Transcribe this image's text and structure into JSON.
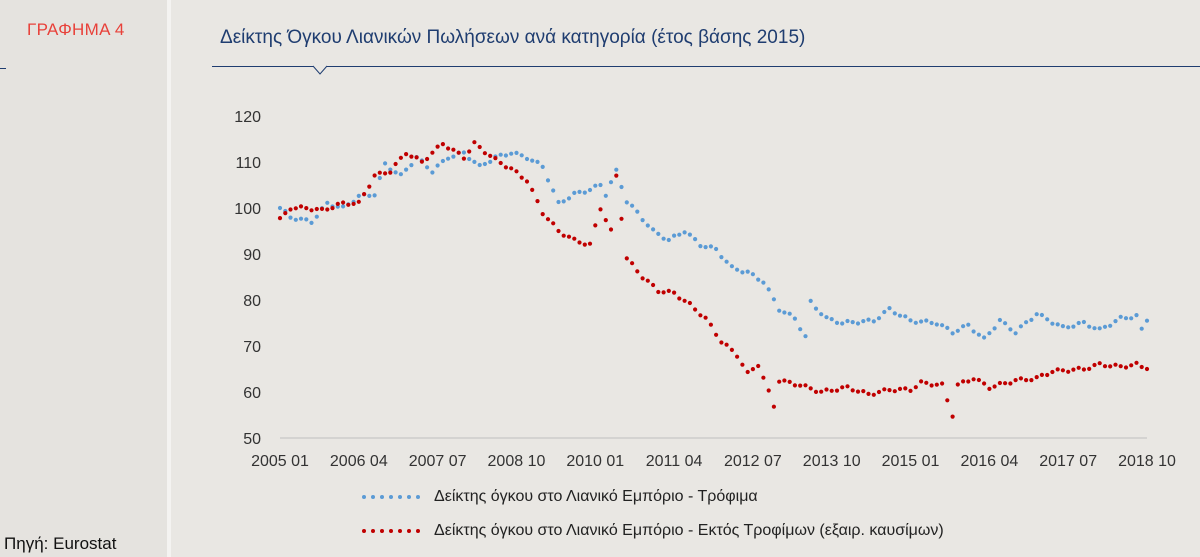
{
  "left": {
    "graph_label": "ΓΡΑΦΗΜΑ 4",
    "source": "Πηγή: Eurostat"
  },
  "colors": {
    "food": "#5b9bd5",
    "nonfood": "#c00000",
    "title": "#1f3d70",
    "graph_label": "#e8413a"
  },
  "chart_data": {
    "type": "scatter",
    "title": "Δείκτης Όγκου Λιανικών Πωλήσεων ανά κατηγορία (έτος βάσης 2015)",
    "xlabel": "",
    "ylabel": "",
    "ylim": [
      50,
      120
    ],
    "yticks": [
      50,
      60,
      70,
      80,
      90,
      100,
      110,
      120
    ],
    "xlim": [
      "2005-01",
      "2018-10"
    ],
    "xticks": [
      "2005 01",
      "2006 04",
      "2007 07",
      "2008 10",
      "2010 01",
      "2011 04",
      "2012 07",
      "2013 10",
      "2015 01",
      "2016 04",
      "2017 07",
      "2018 10"
    ],
    "grid": false,
    "legend_position": "bottom",
    "series": [
      {
        "name": "Δείκτης όγκου στο Λιανικό Εμπόριο - Τρόφιμα",
        "color": "#5b9bd5",
        "anchors": [
          [
            "2005-01",
            100
          ],
          [
            "2005-03",
            98
          ],
          [
            "2005-07",
            97
          ],
          [
            "2005-10",
            101
          ],
          [
            "2006-01",
            100
          ],
          [
            "2006-04",
            102.5
          ],
          [
            "2006-07",
            103
          ],
          [
            "2006-09",
            109.5
          ],
          [
            "2006-12",
            107
          ],
          [
            "2007-03",
            111
          ],
          [
            "2007-06",
            108
          ],
          [
            "2007-09",
            111
          ],
          [
            "2007-12",
            112
          ],
          [
            "2008-03",
            109
          ],
          [
            "2008-06",
            111
          ],
          [
            "2008-09",
            112
          ],
          [
            "2008-12",
            111
          ],
          [
            "2009-03",
            109
          ],
          [
            "2009-06",
            101
          ],
          [
            "2009-09",
            103
          ],
          [
            "2009-12",
            104
          ],
          [
            "2010-02",
            105
          ],
          [
            "2010-03",
            103
          ],
          [
            "2010-05",
            108
          ],
          [
            "2010-07",
            101.5
          ],
          [
            "2010-09",
            99
          ],
          [
            "2010-12",
            95
          ],
          [
            "2011-03",
            93
          ],
          [
            "2011-06",
            95
          ],
          [
            "2011-09",
            92
          ],
          [
            "2011-12",
            91
          ],
          [
            "2012-03",
            87
          ],
          [
            "2012-06",
            86
          ],
          [
            "2012-09",
            84
          ],
          [
            "2012-12",
            78
          ],
          [
            "2013-03",
            76
          ],
          [
            "2013-05",
            72
          ],
          [
            "2013-06",
            79.5
          ],
          [
            "2013-09",
            76
          ],
          [
            "2013-12",
            75
          ],
          [
            "2014-06",
            75.5
          ],
          [
            "2014-09",
            78
          ],
          [
            "2015-01",
            75.5
          ],
          [
            "2015-06",
            75
          ],
          [
            "2015-09",
            73
          ],
          [
            "2015-12",
            74.5
          ],
          [
            "2016-03",
            71.5
          ],
          [
            "2016-06",
            75.5
          ],
          [
            "2016-09",
            73
          ],
          [
            "2017-01",
            77
          ],
          [
            "2017-06",
            74
          ],
          [
            "2017-10",
            75
          ],
          [
            "2018-01",
            73.5
          ],
          [
            "2018-05",
            76
          ],
          [
            "2018-08",
            76.5
          ],
          [
            "2018-09",
            73.5
          ],
          [
            "2018-10",
            75.5
          ]
        ]
      },
      {
        "name": "Δείκτης όγκου στο Λιανικό Εμπόριο - Εκτός Τροφίμων (εξαιρ. καυσίμων)",
        "color": "#c00000",
        "anchors": [
          [
            "2005-01",
            97.5
          ],
          [
            "2005-03",
            100
          ],
          [
            "2005-06",
            100
          ],
          [
            "2005-09",
            99.5
          ],
          [
            "2006-01",
            101
          ],
          [
            "2006-04",
            101
          ],
          [
            "2006-07",
            107
          ],
          [
            "2006-10",
            108
          ],
          [
            "2007-01",
            112
          ],
          [
            "2007-04",
            110
          ],
          [
            "2007-08",
            114
          ],
          [
            "2007-12",
            111
          ],
          [
            "2008-02",
            114
          ],
          [
            "2008-06",
            110.5
          ],
          [
            "2008-09",
            108.5
          ],
          [
            "2008-12",
            106
          ],
          [
            "2009-03",
            99
          ],
          [
            "2009-06",
            95
          ],
          [
            "2009-09",
            93
          ],
          [
            "2009-12",
            92
          ],
          [
            "2010-02",
            100
          ],
          [
            "2010-04",
            95
          ],
          [
            "2010-05",
            107
          ],
          [
            "2010-07",
            89
          ],
          [
            "2010-10",
            85
          ],
          [
            "2011-01",
            82
          ],
          [
            "2011-04",
            81.5
          ],
          [
            "2011-07",
            79
          ],
          [
            "2011-10",
            76
          ],
          [
            "2012-01",
            71
          ],
          [
            "2012-04",
            68
          ],
          [
            "2012-06",
            64
          ],
          [
            "2012-08",
            66
          ],
          [
            "2012-11",
            57
          ],
          [
            "2012-12",
            62.5
          ],
          [
            "2013-04",
            61.5
          ],
          [
            "2013-08",
            60
          ],
          [
            "2014-01",
            61
          ],
          [
            "2014-05",
            59.5
          ],
          [
            "2014-09",
            60.5
          ],
          [
            "2015-01",
            60.5
          ],
          [
            "2015-03",
            62
          ],
          [
            "2015-07",
            61.5
          ],
          [
            "2015-09",
            55
          ],
          [
            "2015-10",
            61.5
          ],
          [
            "2016-01",
            63
          ],
          [
            "2016-04",
            61
          ],
          [
            "2016-09",
            62.5
          ],
          [
            "2017-01",
            63
          ],
          [
            "2017-04",
            64.5
          ],
          [
            "2017-10",
            65
          ],
          [
            "2018-01",
            66
          ],
          [
            "2018-05",
            65.5
          ],
          [
            "2018-08",
            66
          ],
          [
            "2018-10",
            65
          ]
        ]
      }
    ]
  }
}
